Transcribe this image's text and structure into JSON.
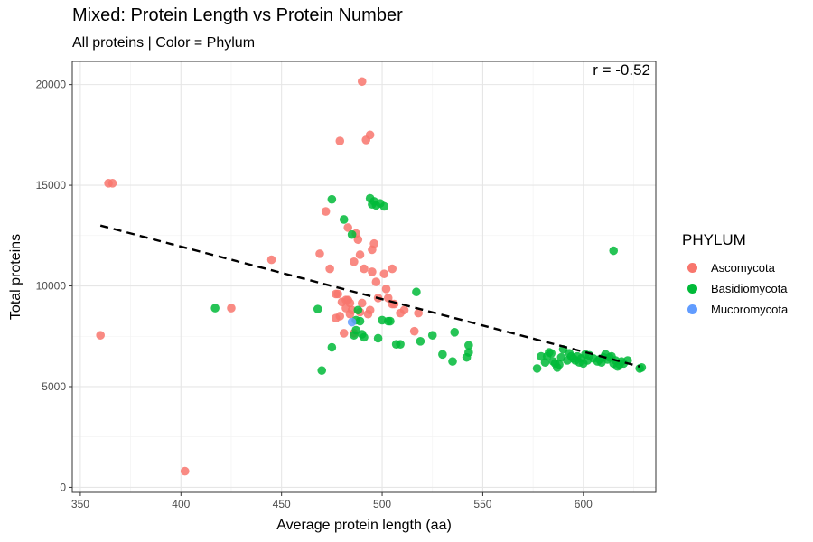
{
  "chart_data": {
    "type": "scatter",
    "title": "Mixed: Protein Length vs Protein Number",
    "subtitle": "All proteins | Color = Phylum",
    "xlabel": "Average protein length (aa)",
    "ylabel": "Total proteins",
    "xlim": [
      346,
      636
    ],
    "ylim": [
      -250,
      21150
    ],
    "xticks": [
      "350",
      "400",
      "450",
      "500",
      "550",
      "600"
    ],
    "yticks": [
      "0",
      "5000",
      "10000",
      "15000",
      "20000"
    ],
    "grid": true,
    "annotation": "r = -0.52",
    "legend_title": "PHYLUM",
    "legend_position": "right",
    "trendline": {
      "style": "dashed",
      "x": [
        360,
        628
      ],
      "y": [
        13000,
        6000
      ]
    },
    "series": [
      {
        "name": "Ascomycota",
        "color": "#F8766D",
        "points": [
          [
            364,
            15100
          ],
          [
            366,
            15100
          ],
          [
            360,
            7550
          ],
          [
            402,
            800
          ],
          [
            425,
            8900
          ],
          [
            445,
            11300
          ],
          [
            469,
            11600
          ],
          [
            472,
            13700
          ],
          [
            474,
            10850
          ],
          [
            477,
            9600
          ],
          [
            477,
            8400
          ],
          [
            478,
            9600
          ],
          [
            479,
            17200
          ],
          [
            479,
            8500
          ],
          [
            480,
            9200
          ],
          [
            481,
            7650
          ],
          [
            482,
            9300
          ],
          [
            482,
            8900
          ],
          [
            483,
            12900
          ],
          [
            483,
            9300
          ],
          [
            484,
            9150
          ],
          [
            484,
            8600
          ],
          [
            485,
            8800
          ],
          [
            486,
            11200
          ],
          [
            486,
            7650
          ],
          [
            487,
            12600
          ],
          [
            488,
            12300
          ],
          [
            489,
            11550
          ],
          [
            489,
            8700
          ],
          [
            490,
            20150
          ],
          [
            490,
            9150
          ],
          [
            491,
            10850
          ],
          [
            492,
            17250
          ],
          [
            493,
            8600
          ],
          [
            494,
            8800
          ],
          [
            494,
            17500
          ],
          [
            495,
            11800
          ],
          [
            495,
            10700
          ],
          [
            496,
            12100
          ],
          [
            497,
            10200
          ],
          [
            498,
            9400
          ],
          [
            501,
            10600
          ],
          [
            502,
            9850
          ],
          [
            503,
            9400
          ],
          [
            505,
            10850
          ],
          [
            505,
            9100
          ],
          [
            506,
            9100
          ],
          [
            509,
            8650
          ],
          [
            511,
            8800
          ],
          [
            516,
            7750
          ],
          [
            518,
            8650
          ]
        ]
      },
      {
        "name": "Basidiomycota",
        "color": "#00BA38",
        "points": [
          [
            417,
            8900
          ],
          [
            468,
            8850
          ],
          [
            470,
            5800
          ],
          [
            475,
            14300
          ],
          [
            475,
            6950
          ],
          [
            481,
            13300
          ],
          [
            485,
            12550
          ],
          [
            486,
            7550
          ],
          [
            487,
            7800
          ],
          [
            487,
            8300
          ],
          [
            488,
            8800
          ],
          [
            489,
            8250
          ],
          [
            490,
            7600
          ],
          [
            491,
            7450
          ],
          [
            494,
            14350
          ],
          [
            495,
            14050
          ],
          [
            496,
            14200
          ],
          [
            497,
            14000
          ],
          [
            498,
            7400
          ],
          [
            499,
            14100
          ],
          [
            500,
            8300
          ],
          [
            501,
            13950
          ],
          [
            503,
            8250
          ],
          [
            504,
            8250
          ],
          [
            507,
            7100
          ],
          [
            509,
            7100
          ],
          [
            517,
            9700
          ],
          [
            519,
            7250
          ],
          [
            525,
            7550
          ],
          [
            530,
            6600
          ],
          [
            535,
            6250
          ],
          [
            536,
            7700
          ],
          [
            542,
            6450
          ],
          [
            543,
            6700
          ],
          [
            543,
            7050
          ],
          [
            577,
            5900
          ],
          [
            579,
            6500
          ],
          [
            581,
            6200
          ],
          [
            582,
            6500
          ],
          [
            583,
            6700
          ],
          [
            584,
            6650
          ],
          [
            585,
            6250
          ],
          [
            586,
            6150
          ],
          [
            587,
            5950
          ],
          [
            588,
            6100
          ],
          [
            589,
            6450
          ],
          [
            590,
            6850
          ],
          [
            592,
            6300
          ],
          [
            593,
            6650
          ],
          [
            594,
            6500
          ],
          [
            595,
            6400
          ],
          [
            596,
            6300
          ],
          [
            597,
            6500
          ],
          [
            598,
            6200
          ],
          [
            599,
            6400
          ],
          [
            600,
            6150
          ],
          [
            601,
            6600
          ],
          [
            602,
            6300
          ],
          [
            603,
            6550
          ],
          [
            605,
            6400
          ],
          [
            607,
            6250
          ],
          [
            608,
            6350
          ],
          [
            609,
            6200
          ],
          [
            610,
            6450
          ],
          [
            611,
            6600
          ],
          [
            612,
            6350
          ],
          [
            613,
            6450
          ],
          [
            614,
            6500
          ],
          [
            615,
            11750
          ],
          [
            615,
            6150
          ],
          [
            616,
            6300
          ],
          [
            617,
            6000
          ],
          [
            618,
            6100
          ],
          [
            619,
            6250
          ],
          [
            620,
            6150
          ],
          [
            622,
            6300
          ],
          [
            628,
            5900
          ],
          [
            629,
            5950
          ]
        ]
      },
      {
        "name": "Mucoromycota",
        "color": "#619CFF",
        "points": [
          [
            485,
            8200
          ]
        ]
      }
    ]
  }
}
